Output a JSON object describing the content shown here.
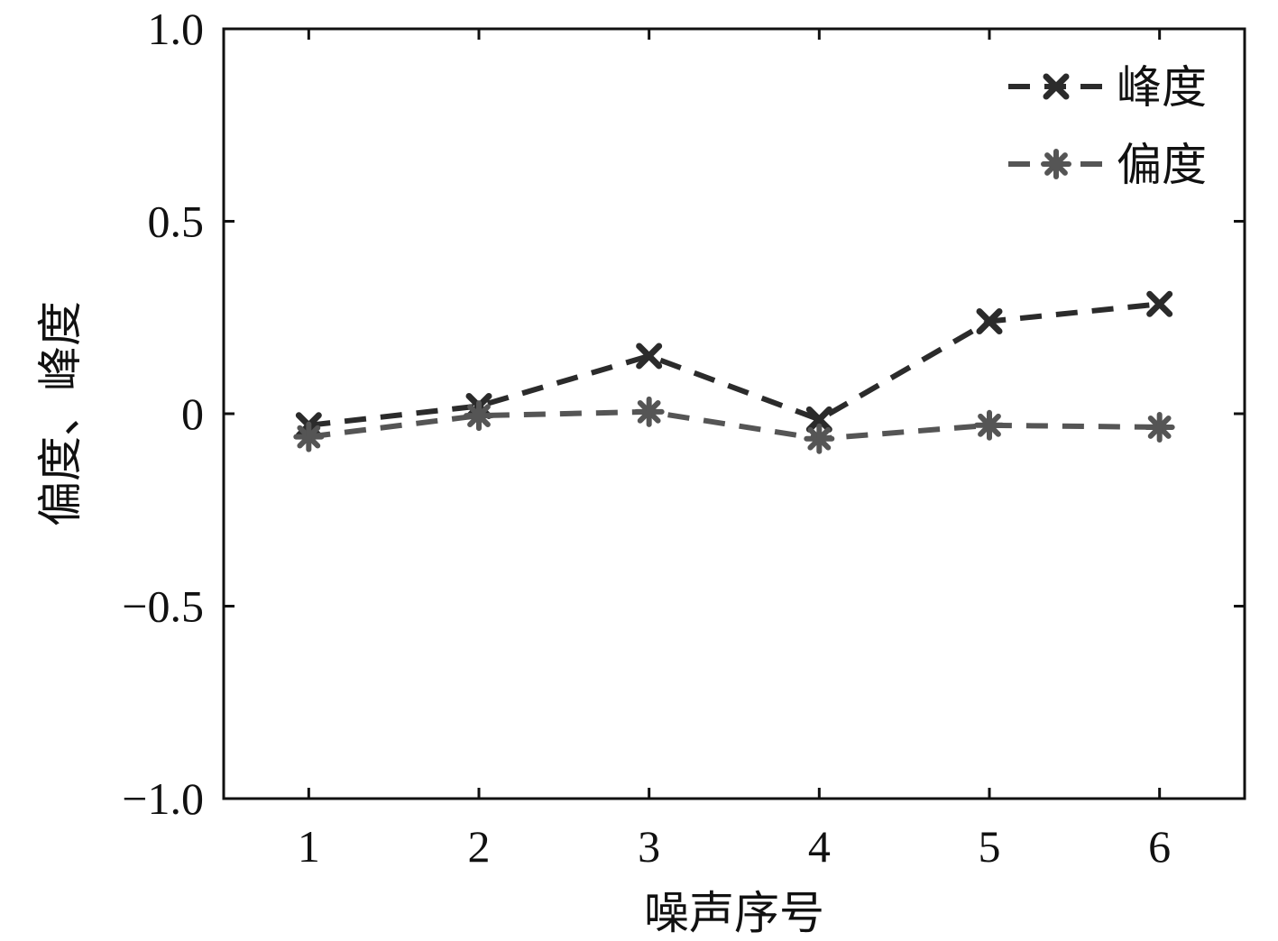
{
  "chart_data": {
    "type": "line",
    "x": [
      1,
      2,
      3,
      4,
      5,
      6
    ],
    "xticks": [
      "1",
      "2",
      "3",
      "4",
      "5",
      "6"
    ],
    "yticks": [
      "1.0",
      "0.5",
      "0",
      "−0.5",
      "−1.0"
    ],
    "ytick_values": [
      1.0,
      0.5,
      0,
      -0.5,
      -1.0
    ],
    "xlabel": "噪声序号",
    "ylabel": "偏度、峰度",
    "xlim": [
      0.5,
      6.5
    ],
    "ylim": [
      -1.0,
      1.0
    ],
    "grid": false,
    "legend_position": "top-right",
    "series": [
      {
        "name": "峰度",
        "marker": "x",
        "line_style": "dashed",
        "color": "#2b2b2b",
        "values": [
          -0.03,
          0.02,
          0.15,
          -0.015,
          0.24,
          0.285
        ]
      },
      {
        "name": "偏度",
        "marker": "asterisk",
        "line_style": "dashed",
        "color": "#555555",
        "values": [
          -0.06,
          -0.005,
          0.005,
          -0.065,
          -0.03,
          -0.035
        ]
      }
    ]
  }
}
